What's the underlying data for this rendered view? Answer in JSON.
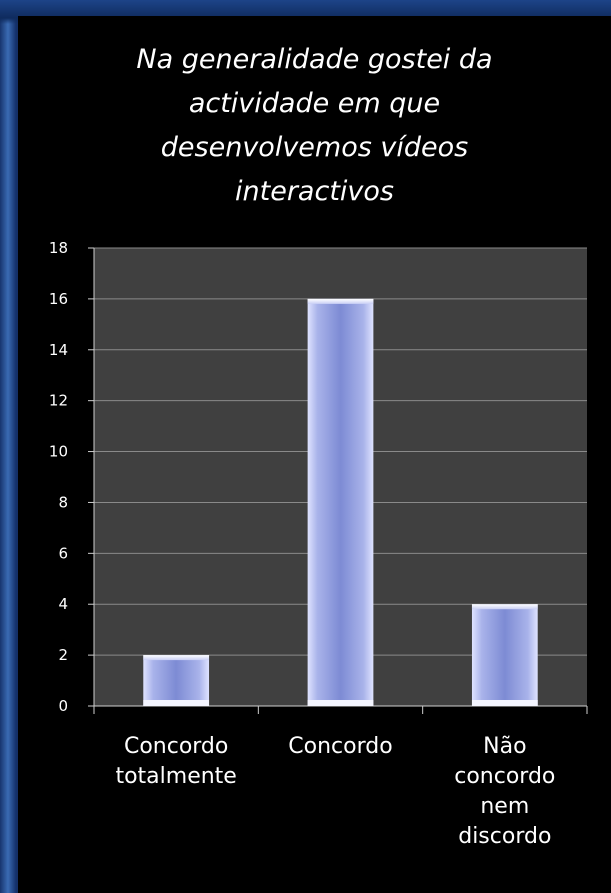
{
  "chart_data": {
    "type": "bar",
    "title": "Na generalidade gostei da\nactividade em que\ndesenvolvemos vídeos\ninteractivos",
    "categories": [
      "Concordo\ntotalmente",
      "Concordo",
      "Não\nconcordo\nnem\ndiscordo"
    ],
    "values": [
      2,
      16,
      4
    ],
    "ylim": [
      0,
      18
    ],
    "yticks": [
      "0",
      "2",
      "4",
      "6",
      "8",
      "10",
      "12",
      "14",
      "16",
      "18"
    ],
    "grid": true,
    "legend": "none",
    "colors": {
      "plot_background": "#404040",
      "bar_light": "#eef0ff",
      "bar_mid": "#9aa6e0",
      "bar_dark": "#6f7fcc",
      "gridline": "#8a8a8a",
      "text": "#ffffff"
    }
  }
}
